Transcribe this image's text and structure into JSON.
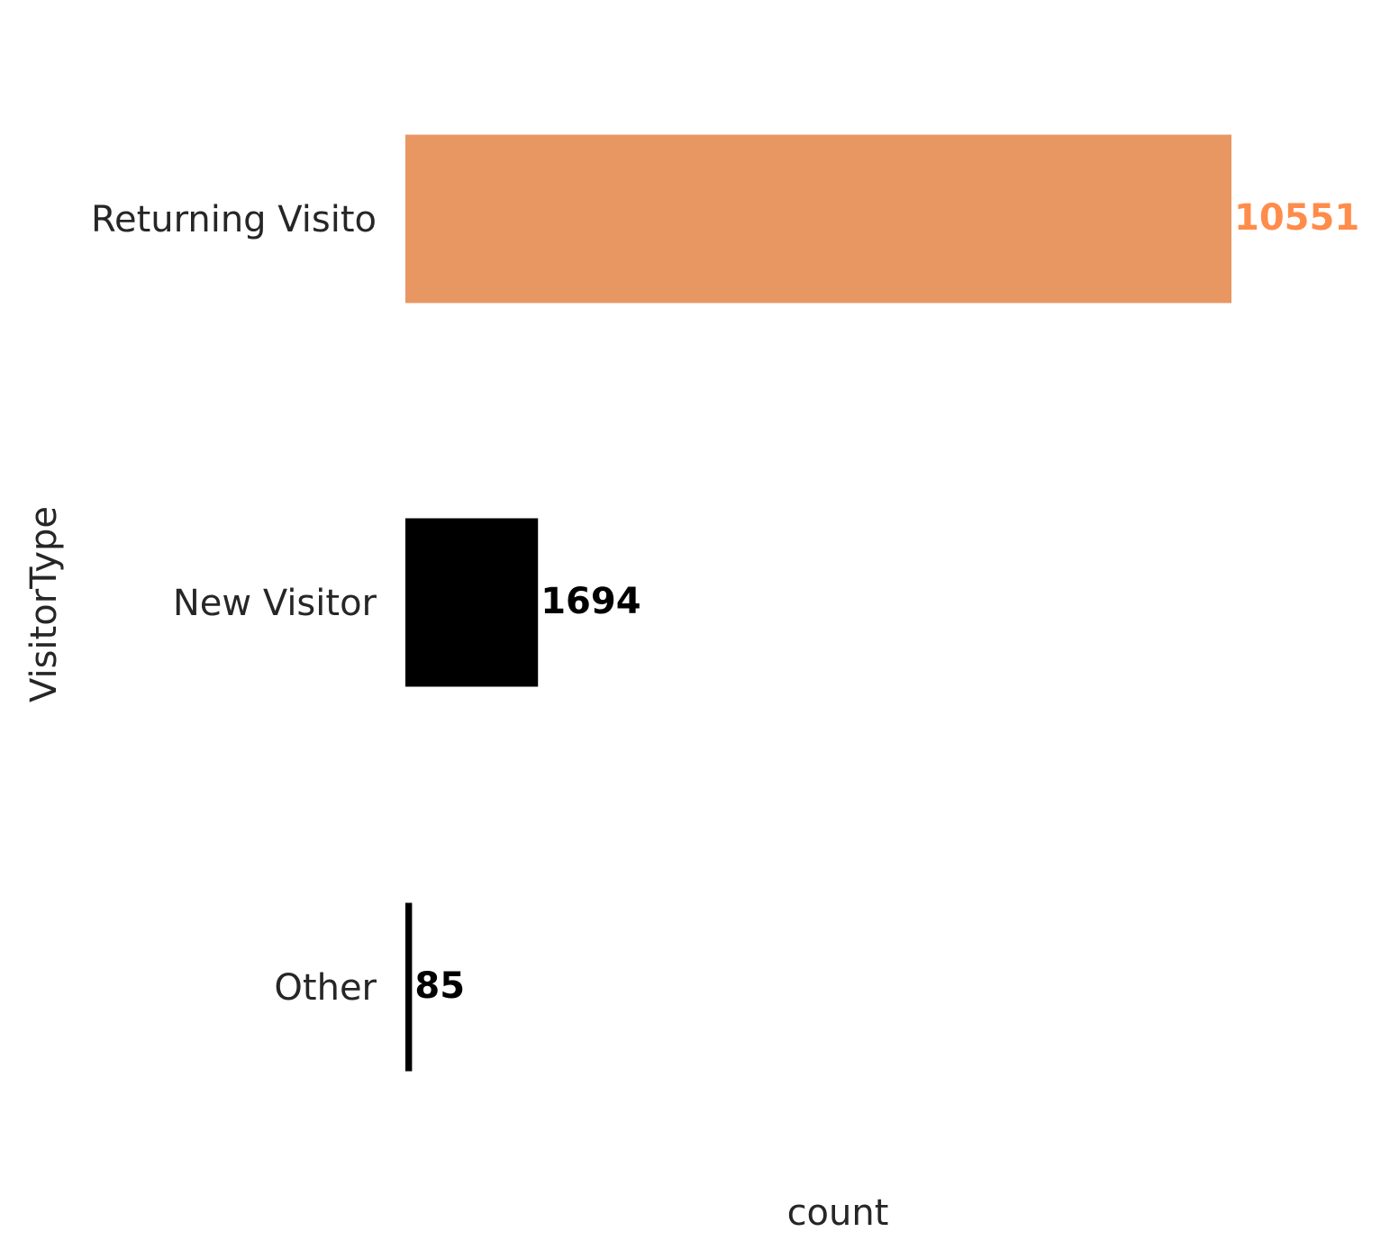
{
  "chart_data": {
    "type": "bar",
    "orientation": "horizontal",
    "categories": [
      "Returning Visito",
      "New Visitor",
      "Other"
    ],
    "values": [
      10551,
      1694,
      85
    ],
    "xlabel": "count",
    "ylabel": "VisitorType",
    "title": "",
    "xlim": [
      0,
      11000
    ],
    "grid": false,
    "legend": "none",
    "bar_colors": [
      "#e89763",
      "#000000",
      "#000000"
    ],
    "label_colors": [
      "#ff8c4a",
      "#000000",
      "#000000"
    ]
  }
}
